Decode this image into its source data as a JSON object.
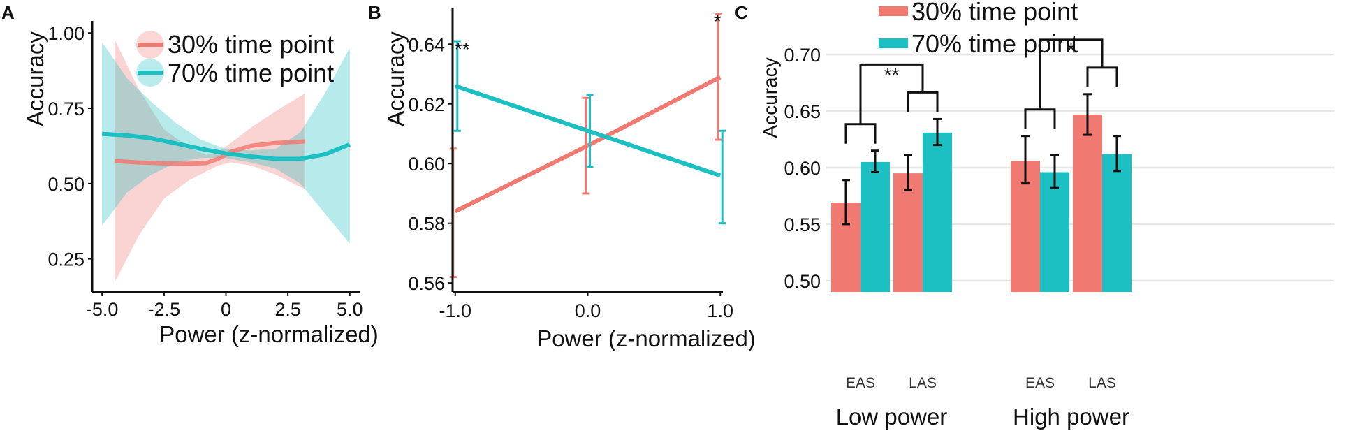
{
  "colors": {
    "series30": "#f07a72",
    "series70": "#1cbfc2",
    "axis": "#111111",
    "grid": "#e6e6e6"
  },
  "chart_data": [
    {
      "panel": "A",
      "type": "line",
      "xlabel": "Power (z-normalized)",
      "ylabel": "Accuracy",
      "xlim": [
        -5.4,
        5.4
      ],
      "ylim": [
        0.14,
        1.04
      ],
      "xticks": [
        -5,
        -2.5,
        0,
        2.5,
        5
      ],
      "xtick_labels": [
        "-5.0",
        "-2.5",
        "0",
        "2.5",
        "5.0"
      ],
      "yticks": [
        0.25,
        0.5,
        0.75,
        1.0
      ],
      "ytick_labels": [
        "0.25",
        "0.50",
        "0.75",
        "1.00"
      ],
      "legend": [
        "30% time point",
        "70% time point"
      ],
      "series": [
        {
          "name": "30% time point",
          "x": [
            -4.5,
            -3.5,
            -2.5,
            -1.5,
            -0.8,
            -0.3,
            0.2,
            1.0,
            2.0,
            3.2
          ],
          "y": [
            0.575,
            0.57,
            0.567,
            0.566,
            0.568,
            0.583,
            0.605,
            0.625,
            0.635,
            0.64
          ],
          "lower": [
            0.17,
            0.33,
            0.45,
            0.51,
            0.54,
            0.56,
            0.57,
            0.56,
            0.53,
            0.48
          ],
          "upper": [
            0.98,
            0.81,
            0.68,
            0.62,
            0.595,
            0.605,
            0.635,
            0.685,
            0.74,
            0.8
          ]
        },
        {
          "name": "70% time point",
          "x": [
            -5,
            -4,
            -3,
            -2,
            -1,
            0,
            1,
            2,
            3,
            4,
            5
          ],
          "y": [
            0.665,
            0.66,
            0.65,
            0.633,
            0.615,
            0.6,
            0.59,
            0.582,
            0.582,
            0.597,
            0.63
          ],
          "lower": [
            0.36,
            0.47,
            0.53,
            0.57,
            0.585,
            0.585,
            0.57,
            0.55,
            0.5,
            0.4,
            0.3
          ],
          "upper": [
            0.97,
            0.85,
            0.77,
            0.7,
            0.645,
            0.615,
            0.61,
            0.615,
            0.67,
            0.8,
            0.95
          ]
        }
      ]
    },
    {
      "panel": "B",
      "type": "line",
      "xlabel": "Power (z-normalized)",
      "ylabel": "Accuracy",
      "xlim": [
        -1.02,
        1.02
      ],
      "ylim": [
        0.557,
        0.652
      ],
      "xticks": [
        -1,
        0,
        1
      ],
      "xtick_labels": [
        "-1.0",
        "0.0",
        "1.0"
      ],
      "yticks": [
        0.56,
        0.58,
        0.6,
        0.62,
        0.64
      ],
      "ytick_labels": [
        "0.56",
        "0.58",
        "0.60",
        "0.62",
        "0.64"
      ],
      "series": [
        {
          "name": "30% time point",
          "x": [
            -1,
            0,
            1
          ],
          "y": [
            0.584,
            0.606,
            0.629
          ],
          "err_low": [
            0.562,
            0.59,
            0.608
          ],
          "err_high": [
            0.605,
            0.622,
            0.65
          ]
        },
        {
          "name": "70% time point",
          "x": [
            -1,
            0,
            1
          ],
          "y": [
            0.626,
            0.611,
            0.596
          ],
          "err_low": [
            0.611,
            0.599,
            0.58
          ],
          "err_high": [
            0.641,
            0.623,
            0.611
          ]
        }
      ],
      "annotations": [
        {
          "text": "**",
          "x": -1
        },
        {
          "text": "*",
          "x": 1
        }
      ]
    },
    {
      "panel": "C",
      "type": "bar",
      "ylabel": "Accuracy",
      "ylim": [
        0.49,
        0.71
      ],
      "yticks": [
        0.5,
        0.55,
        0.6,
        0.65,
        0.7
      ],
      "ytick_labels": [
        "0.50",
        "0.55",
        "0.60",
        "0.65",
        "0.70"
      ],
      "legend": [
        "30% time point",
        "70% time point"
      ],
      "groups": [
        {
          "label": "Low power",
          "subgroups": [
            {
              "label": "EAS",
              "values": [
                0.569,
                0.605
              ],
              "err_low": [
                0.55,
                0.596
              ],
              "err_high": [
                0.589,
                0.615
              ]
            },
            {
              "label": "LAS",
              "values": [
                0.595,
                0.631
              ],
              "err_low": [
                0.58,
                0.62
              ],
              "err_high": [
                0.611,
                0.643
              ]
            }
          ],
          "significance": "**"
        },
        {
          "label": "High power",
          "subgroups": [
            {
              "label": "EAS",
              "values": [
                0.606,
                0.596
              ],
              "err_low": [
                0.586,
                0.582
              ],
              "err_high": [
                0.628,
                0.611
              ]
            },
            {
              "label": "LAS",
              "values": [
                0.647,
                0.612
              ],
              "err_low": [
                0.629,
                0.597
              ],
              "err_high": [
                0.665,
                0.628
              ]
            }
          ],
          "significance": "*"
        }
      ]
    }
  ]
}
